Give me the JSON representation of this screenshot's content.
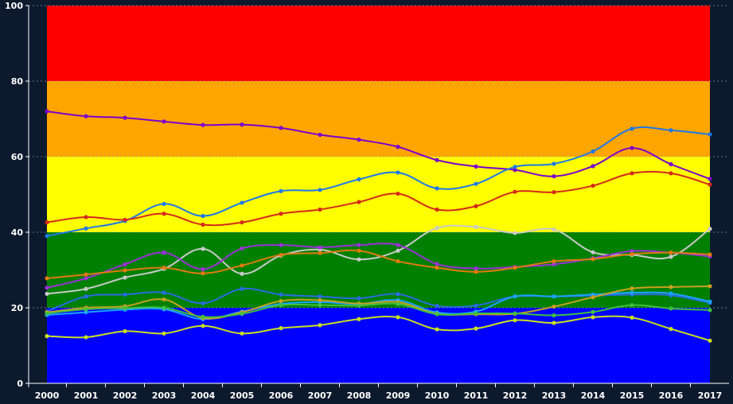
{
  "chart_data": {
    "type": "line",
    "x": [
      "2000",
      "2001",
      "2002",
      "2003",
      "2004",
      "2005",
      "2006",
      "2007",
      "2008",
      "2009",
      "2010",
      "2011",
      "2012",
      "2013",
      "2014",
      "2015",
      "2016",
      "2017"
    ],
    "ylim": [
      0,
      100
    ],
    "yticks": [
      0,
      20,
      40,
      60,
      80,
      100
    ],
    "grid": true,
    "bands": [
      {
        "from": 0,
        "to": 20,
        "color": "#0000ff"
      },
      {
        "from": 20,
        "to": 40,
        "color": "#008000"
      },
      {
        "from": 40,
        "to": 60,
        "color": "#ffff00"
      },
      {
        "from": 60,
        "to": 80,
        "color": "#ffa500"
      },
      {
        "from": 80,
        "to": 100,
        "color": "#ff0000"
      }
    ],
    "series": [
      {
        "color": "#7b00cc",
        "values": [
          72.0,
          70.7,
          70.3,
          69.3,
          68.4,
          68.5,
          67.6,
          65.8,
          64.5,
          62.6,
          59.1,
          57.4,
          56.5,
          54.8,
          57.5,
          62.3,
          58.0,
          54.1
        ]
      },
      {
        "color": "#1f78e8",
        "values": [
          39.0,
          41.0,
          43.0,
          47.5,
          44.3,
          47.8,
          50.9,
          51.2,
          54.0,
          55.8,
          51.6,
          52.8,
          57.3,
          58.1,
          61.4,
          67.4,
          67.0,
          65.9
        ]
      },
      {
        "color": "#d42a1a",
        "values": [
          42.6,
          44.0,
          43.3,
          44.9,
          42.0,
          42.6,
          44.9,
          46.0,
          48.0,
          50.2,
          46.0,
          46.9,
          50.7,
          50.6,
          52.3,
          55.6,
          55.6,
          52.6
        ]
      },
      {
        "color": "#c9c9c9",
        "values": [
          23.7,
          25.0,
          28.0,
          30.3,
          35.6,
          29.0,
          33.8,
          35.4,
          32.8,
          35.1,
          41.1,
          41.4,
          39.8,
          40.7,
          34.7,
          34.0,
          33.5,
          40.9
        ]
      },
      {
        "color": "#9b30d8",
        "values": [
          25.3,
          27.8,
          31.5,
          34.6,
          30.2,
          35.7,
          36.6,
          36.0,
          36.6,
          36.6,
          31.6,
          30.4,
          30.8,
          31.5,
          33.1,
          35.0,
          34.6,
          33.6
        ]
      },
      {
        "color": "#e07a10",
        "values": [
          27.8,
          28.8,
          29.9,
          30.6,
          29.1,
          31.2,
          34.0,
          34.5,
          35.1,
          32.3,
          30.6,
          29.5,
          30.6,
          32.3,
          32.9,
          34.2,
          34.6,
          34.1
        ]
      },
      {
        "color": "#2a6ae0",
        "values": [
          19.0,
          23.0,
          23.5,
          24.0,
          21.2,
          25.0,
          23.5,
          23.0,
          22.5,
          23.6,
          20.5,
          20.6,
          23.0,
          23.0,
          23.2,
          23.5,
          23.3,
          21.3
        ]
      },
      {
        "color": "#1aa3ff",
        "values": [
          18.1,
          18.8,
          19.5,
          19.6,
          17.0,
          19.0,
          21.0,
          21.5,
          21.0,
          22.0,
          18.8,
          19.0,
          23.0,
          23.0,
          23.5,
          24.0,
          23.8,
          21.6
        ]
      },
      {
        "color": "#c8a020",
        "values": [
          18.8,
          20.0,
          20.4,
          22.2,
          17.3,
          18.8,
          21.8,
          22.0,
          21.1,
          21.5,
          18.4,
          18.3,
          18.4,
          20.3,
          22.8,
          25.1,
          25.5,
          25.7
        ]
      },
      {
        "color": "#40c040",
        "values": [
          18.5,
          19.6,
          19.9,
          20.0,
          17.6,
          18.4,
          20.7,
          20.7,
          20.6,
          21.0,
          18.3,
          18.5,
          18.5,
          18.0,
          18.9,
          20.7,
          19.8,
          19.4
        ]
      },
      {
        "color": "#c8e020",
        "values": [
          12.5,
          12.2,
          13.8,
          13.2,
          15.2,
          13.2,
          14.6,
          15.4,
          17.0,
          17.5,
          14.3,
          14.5,
          16.7,
          16.0,
          17.5,
          17.4,
          14.4,
          11.3
        ]
      }
    ]
  }
}
